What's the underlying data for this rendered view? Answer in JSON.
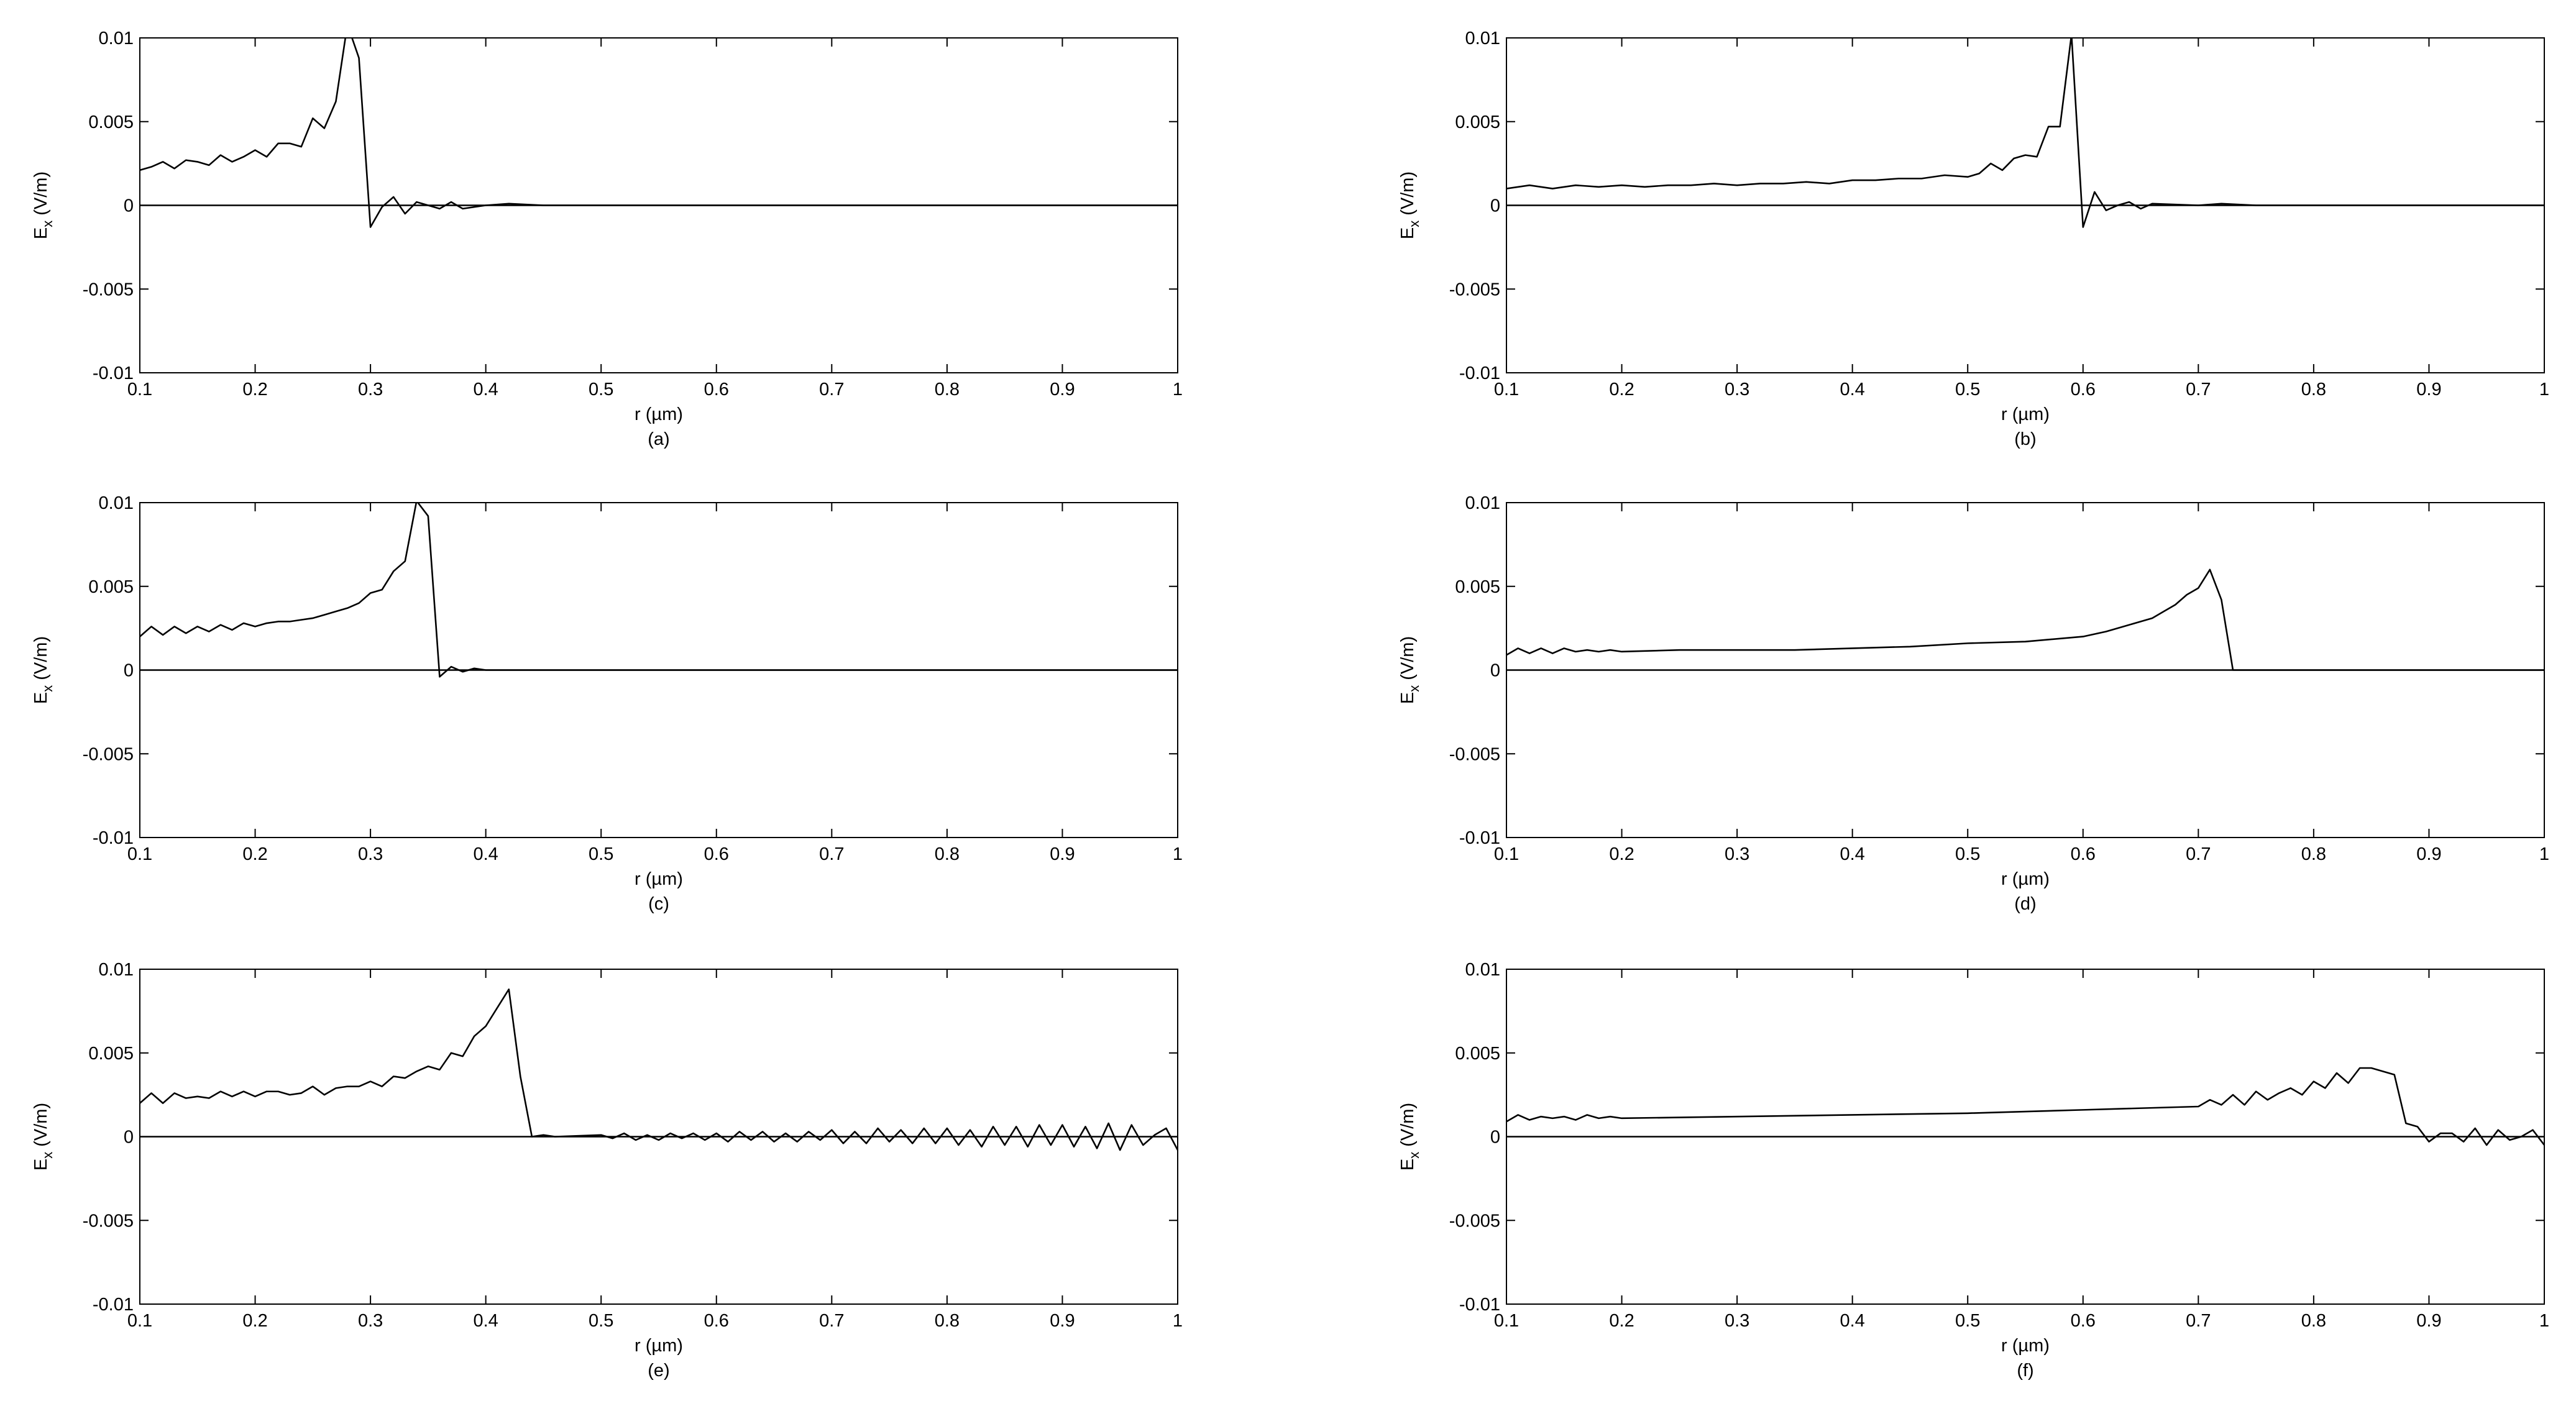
{
  "chart_data": [
    {
      "type": "line",
      "caption": "(a)",
      "xlabel": "r (µm)",
      "ylabel_symbol": "E",
      "ylabel_subscript": "x",
      "ylabel_unit": "(V/m)",
      "color": "#000000",
      "xlim": [
        0.1,
        1
      ],
      "ylim": [
        -0.01,
        0.01
      ],
      "xticks": [
        0.1,
        0.2,
        0.3,
        0.4,
        0.5,
        0.6,
        0.7,
        0.8,
        0.9,
        1
      ],
      "yticks": [
        -0.01,
        -0.005,
        0,
        0.005,
        0.01
      ],
      "x": [
        0.1,
        0.11,
        0.12,
        0.13,
        0.14,
        0.15,
        0.16,
        0.17,
        0.18,
        0.19,
        0.2,
        0.21,
        0.22,
        0.23,
        0.24,
        0.25,
        0.26,
        0.27,
        0.28,
        0.29,
        0.3,
        0.31,
        0.32,
        0.33,
        0.34,
        0.35,
        0.36,
        0.37,
        0.38,
        0.4,
        0.42,
        0.45,
        0.5,
        1
      ],
      "values": [
        0.0021,
        0.0023,
        0.0026,
        0.0022,
        0.0027,
        0.0026,
        0.0024,
        0.003,
        0.0026,
        0.0029,
        0.0033,
        0.0029,
        0.0037,
        0.0037,
        0.0035,
        0.0052,
        0.0046,
        0.0062,
        0.0108,
        0.0088,
        -0.0013,
        -0.0001,
        0.0005,
        -0.0005,
        0.0002,
        0,
        -0.0002,
        0.0002,
        -0.0002,
        0,
        0.0001,
        0,
        0,
        0
      ]
    },
    {
      "type": "line",
      "caption": "(b)",
      "xlabel": "r (µm)",
      "ylabel_symbol": "E",
      "ylabel_subscript": "x",
      "ylabel_unit": "(V/m)",
      "color": "#000000",
      "xlim": [
        0.1,
        1
      ],
      "ylim": [
        -0.01,
        0.01
      ],
      "xticks": [
        0.1,
        0.2,
        0.3,
        0.4,
        0.5,
        0.6,
        0.7,
        0.8,
        0.9,
        1
      ],
      "yticks": [
        -0.01,
        -0.005,
        0,
        0.005,
        0.01
      ],
      "x": [
        0.1,
        0.12,
        0.14,
        0.16,
        0.18,
        0.2,
        0.22,
        0.24,
        0.26,
        0.28,
        0.3,
        0.32,
        0.34,
        0.36,
        0.38,
        0.4,
        0.42,
        0.44,
        0.46,
        0.48,
        0.5,
        0.51,
        0.52,
        0.53,
        0.54,
        0.55,
        0.56,
        0.57,
        0.58,
        0.59,
        0.6,
        0.61,
        0.62,
        0.63,
        0.64,
        0.65,
        0.66,
        0.7,
        0.72,
        0.75,
        1
      ],
      "values": [
        0.001,
        0.0012,
        0.001,
        0.0012,
        0.0011,
        0.0012,
        0.0011,
        0.0012,
        0.0012,
        0.0013,
        0.0012,
        0.0013,
        0.0013,
        0.0014,
        0.0013,
        0.0015,
        0.0015,
        0.0016,
        0.0016,
        0.0018,
        0.0017,
        0.0019,
        0.0025,
        0.0021,
        0.0028,
        0.003,
        0.0029,
        0.0047,
        0.0047,
        0.0102,
        -0.0013,
        0.0008,
        -0.0003,
        0,
        0.0002,
        -0.0002,
        0.0001,
        0,
        0.0001,
        0,
        0
      ]
    },
    {
      "type": "line",
      "caption": "(c)",
      "xlabel": "r (µm)",
      "ylabel_symbol": "E",
      "ylabel_subscript": "x",
      "ylabel_unit": "(V/m)",
      "color": "#000000",
      "xlim": [
        0.1,
        1
      ],
      "ylim": [
        -0.01,
        0.01
      ],
      "xticks": [
        0.1,
        0.2,
        0.3,
        0.4,
        0.5,
        0.6,
        0.7,
        0.8,
        0.9,
        1
      ],
      "yticks": [
        -0.01,
        -0.005,
        0,
        0.005,
        0.01
      ],
      "x": [
        0.1,
        0.11,
        0.12,
        0.13,
        0.14,
        0.15,
        0.16,
        0.17,
        0.18,
        0.19,
        0.2,
        0.21,
        0.22,
        0.23,
        0.24,
        0.25,
        0.26,
        0.27,
        0.28,
        0.29,
        0.3,
        0.31,
        0.32,
        0.33,
        0.34,
        0.35,
        0.36,
        0.37,
        0.38,
        0.39,
        0.4,
        0.5,
        1
      ],
      "values": [
        0.002,
        0.0026,
        0.0021,
        0.0026,
        0.0022,
        0.0026,
        0.0023,
        0.0027,
        0.0024,
        0.0028,
        0.0026,
        0.0028,
        0.0029,
        0.0029,
        0.003,
        0.0031,
        0.0033,
        0.0035,
        0.0037,
        0.004,
        0.0046,
        0.0048,
        0.0059,
        0.0065,
        0.0101,
        0.0092,
        -0.0004,
        0.0002,
        -0.0001,
        0.0001,
        0,
        0,
        0
      ]
    },
    {
      "type": "line",
      "caption": "(d)",
      "xlabel": "r (µm)",
      "ylabel_symbol": "E",
      "ylabel_subscript": "x",
      "ylabel_unit": "(V/m)",
      "color": "#000000",
      "xlim": [
        0.1,
        1
      ],
      "ylim": [
        -0.01,
        0.01
      ],
      "xticks": [
        0.1,
        0.2,
        0.3,
        0.4,
        0.5,
        0.6,
        0.7,
        0.8,
        0.9,
        1
      ],
      "yticks": [
        -0.01,
        -0.005,
        0,
        0.005,
        0.01
      ],
      "x": [
        0.1,
        0.11,
        0.12,
        0.13,
        0.14,
        0.15,
        0.16,
        0.17,
        0.18,
        0.19,
        0.2,
        0.25,
        0.3,
        0.35,
        0.4,
        0.45,
        0.5,
        0.55,
        0.6,
        0.62,
        0.64,
        0.66,
        0.67,
        0.68,
        0.69,
        0.7,
        0.71,
        0.72,
        0.73,
        0.8,
        1
      ],
      "values": [
        0.0009,
        0.0013,
        0.001,
        0.0013,
        0.001,
        0.0013,
        0.0011,
        0.0012,
        0.0011,
        0.0012,
        0.0011,
        0.0012,
        0.0012,
        0.0012,
        0.0013,
        0.0014,
        0.0016,
        0.0017,
        0.002,
        0.0023,
        0.0027,
        0.0031,
        0.0035,
        0.0039,
        0.0045,
        0.0049,
        0.006,
        0.0042,
        0,
        0,
        0
      ]
    },
    {
      "type": "line",
      "caption": "(e)",
      "xlabel": "r (µm)",
      "ylabel_symbol": "E",
      "ylabel_subscript": "x",
      "ylabel_unit": "(V/m)",
      "color": "#000000",
      "xlim": [
        0.1,
        1
      ],
      "ylim": [
        -0.01,
        0.01
      ],
      "xticks": [
        0.1,
        0.2,
        0.3,
        0.4,
        0.5,
        0.6,
        0.7,
        0.8,
        0.9,
        1
      ],
      "yticks": [
        -0.01,
        -0.005,
        0,
        0.005,
        0.01
      ],
      "x": [
        0.1,
        0.11,
        0.12,
        0.13,
        0.14,
        0.15,
        0.16,
        0.17,
        0.18,
        0.19,
        0.2,
        0.21,
        0.22,
        0.23,
        0.24,
        0.25,
        0.26,
        0.27,
        0.28,
        0.29,
        0.3,
        0.31,
        0.32,
        0.33,
        0.34,
        0.35,
        0.36,
        0.37,
        0.38,
        0.39,
        0.4,
        0.41,
        0.42,
        0.43,
        0.44,
        0.45,
        0.46,
        0.5,
        0.51,
        0.52,
        0.53,
        0.54,
        0.55,
        0.56,
        0.57,
        0.58,
        0.59,
        0.6,
        0.61,
        0.62,
        0.63,
        0.64,
        0.65,
        0.66,
        0.67,
        0.68,
        0.69,
        0.7,
        0.71,
        0.72,
        0.73,
        0.74,
        0.75,
        0.76,
        0.77,
        0.78,
        0.79,
        0.8,
        0.81,
        0.82,
        0.83,
        0.84,
        0.85,
        0.86,
        0.87,
        0.88,
        0.89,
        0.9,
        0.91,
        0.92,
        0.93,
        0.94,
        0.95,
        0.96,
        0.97,
        0.98,
        0.99,
        1
      ],
      "values": [
        0.002,
        0.0026,
        0.002,
        0.0026,
        0.0023,
        0.0024,
        0.0023,
        0.0027,
        0.0024,
        0.0027,
        0.0024,
        0.0027,
        0.0027,
        0.0025,
        0.0026,
        0.003,
        0.0025,
        0.0029,
        0.003,
        0.003,
        0.0033,
        0.003,
        0.0036,
        0.0035,
        0.0039,
        0.0042,
        0.004,
        0.005,
        0.0048,
        0.006,
        0.0066,
        0.0077,
        0.0088,
        0.0036,
        0,
        0.0001,
        0,
        0.0001,
        -0.0001,
        0.0002,
        -0.0002,
        0.0001,
        -0.0002,
        0.0002,
        -0.0001,
        0.0002,
        -0.0002,
        0.0002,
        -0.0003,
        0.0003,
        -0.0002,
        0.0003,
        -0.0003,
        0.0002,
        -0.0003,
        0.0003,
        -0.0002,
        0.0004,
        -0.0004,
        0.0003,
        -0.0004,
        0.0005,
        -0.0003,
        0.0004,
        -0.0004,
        0.0005,
        -0.0004,
        0.0005,
        -0.0005,
        0.0004,
        -0.0006,
        0.0006,
        -0.0005,
        0.0006,
        -0.0006,
        0.0007,
        -0.0005,
        0.0007,
        -0.0006,
        0.0006,
        -0.0007,
        0.0008,
        -0.0008,
        0.0007,
        -0.0005,
        0.0001,
        0.0005,
        -0.0008
      ]
    },
    {
      "type": "line",
      "caption": "(f)",
      "xlabel": "r (µm)",
      "ylabel_symbol": "E",
      "ylabel_subscript": "x",
      "ylabel_unit": "(V/m)",
      "color": "#000000",
      "xlim": [
        0.1,
        1
      ],
      "ylim": [
        -0.01,
        0.01
      ],
      "xticks": [
        0.1,
        0.2,
        0.3,
        0.4,
        0.5,
        0.6,
        0.7,
        0.8,
        0.9,
        1
      ],
      "yticks": [
        -0.01,
        -0.005,
        0,
        0.005,
        0.01
      ],
      "x": [
        0.1,
        0.11,
        0.12,
        0.13,
        0.14,
        0.15,
        0.16,
        0.17,
        0.18,
        0.19,
        0.2,
        0.3,
        0.4,
        0.5,
        0.6,
        0.7,
        0.71,
        0.72,
        0.73,
        0.74,
        0.75,
        0.76,
        0.77,
        0.78,
        0.79,
        0.8,
        0.81,
        0.82,
        0.83,
        0.84,
        0.85,
        0.86,
        0.87,
        0.88,
        0.89,
        0.9,
        0.91,
        0.92,
        0.93,
        0.94,
        0.95,
        0.96,
        0.97,
        0.98,
        0.99,
        1
      ],
      "values": [
        0.0009,
        0.0013,
        0.001,
        0.0012,
        0.0011,
        0.0012,
        0.001,
        0.0013,
        0.0011,
        0.0012,
        0.0011,
        0.0012,
        0.0013,
        0.0014,
        0.0016,
        0.0018,
        0.0022,
        0.0019,
        0.0025,
        0.0019,
        0.0027,
        0.0022,
        0.0026,
        0.0029,
        0.0025,
        0.0033,
        0.0029,
        0.0038,
        0.0032,
        0.0041,
        0.0041,
        0.0039,
        0.0037,
        0.0008,
        0.0006,
        -0.0003,
        0.0002,
        0.0002,
        -0.0003,
        0.0005,
        -0.0005,
        0.0004,
        -0.0002,
        0,
        0.0004,
        -0.0005
      ]
    }
  ]
}
